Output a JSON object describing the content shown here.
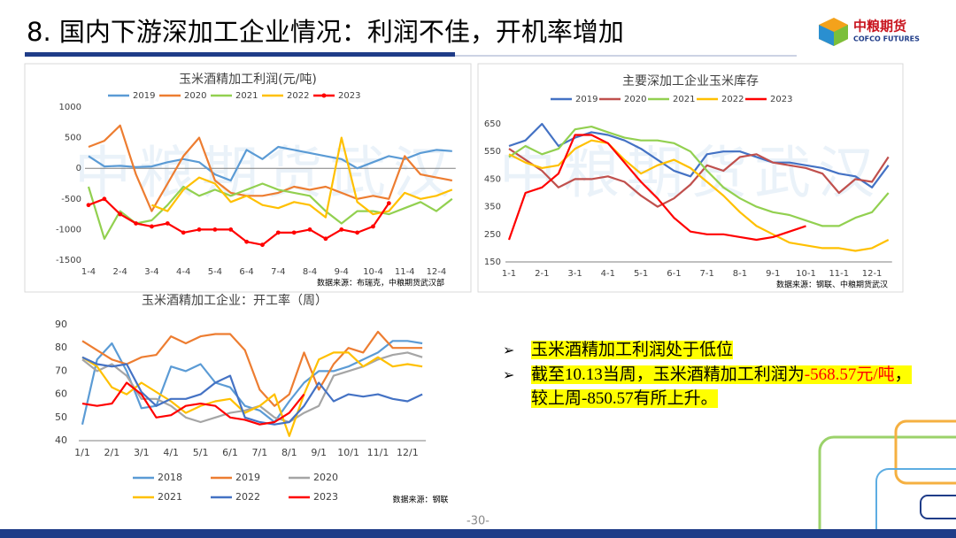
{
  "slide": {
    "title": "8. 国内下游深加工企业情况：利润不佳，开机率增加",
    "logo": {
      "name": "中粮期货",
      "english": "COFCO FUTURES"
    },
    "watermark": "中粮期货武汉",
    "bullets": [
      [
        "玉米酒精加工利润处于低位"
      ],
      [
        "截至10.13当周，玉米酒精加工利润为",
        "-568.57元/吨",
        "，较上周-850.57有所上升。"
      ]
    ],
    "page_number": "-30-"
  },
  "chart_data": [
    {
      "type": "line",
      "title": "玉米酒精加工利润(元/吨)",
      "source": "数据来源：布瑞克，中粮期货武汉部",
      "legend": "top",
      "categories": [
        "1-4",
        null,
        "2-4",
        null,
        "3-4",
        null,
        "4-4",
        null,
        "5-4",
        null,
        "6-4",
        null,
        "7-4",
        null,
        "8-4",
        null,
        "9-4",
        null,
        "10-4",
        null,
        "11-4",
        null,
        "12-4",
        null
      ],
      "ylim": [
        -1500,
        1000
      ],
      "yticks": [
        -1500,
        -1000,
        -500,
        0,
        500,
        1000
      ],
      "series": [
        {
          "name": "2019",
          "color": "#5b9bd5",
          "values": [
            200,
            30,
            40,
            20,
            30,
            100,
            150,
            100,
            -100,
            -200,
            300,
            150,
            350,
            300,
            250,
            200,
            150,
            0,
            100,
            200,
            150,
            250,
            300,
            280
          ]
        },
        {
          "name": "2020",
          "color": "#ed7d31",
          "values": [
            350,
            450,
            700,
            -100,
            -700,
            -250,
            200,
            500,
            -200,
            -400,
            -450,
            -450,
            -400,
            -300,
            -350,
            -300,
            -400,
            -500,
            -450,
            -500,
            200,
            -100,
            -150,
            -200
          ]
        },
        {
          "name": "2021",
          "color": "#92d050",
          "values": [
            -300,
            -1150,
            -700,
            -900,
            -850,
            -600,
            -300,
            -450,
            -350,
            -450,
            -350,
            -250,
            -350,
            -400,
            -450,
            -700,
            -900,
            -700,
            -700,
            -750,
            -650,
            -550,
            -700,
            -500
          ]
        },
        {
          "name": "2022",
          "color": "#ffc000",
          "values": [
            null,
            null,
            null,
            null,
            -600,
            -700,
            -350,
            -150,
            -250,
            -550,
            -450,
            -600,
            -650,
            -550,
            -600,
            -800,
            500,
            -550,
            -750,
            -700,
            -400,
            -500,
            -450,
            -350
          ]
        },
        {
          "name": "2023",
          "color": "#ff0000",
          "marker": true,
          "values": [
            -600,
            -500,
            -750,
            -900,
            -950,
            -900,
            -1050,
            -1000,
            -1000,
            -1000,
            -1200,
            -1250,
            -1050,
            -1050,
            -1000,
            -1150,
            -1000,
            -1050,
            -950,
            -570,
            null,
            null,
            null,
            null
          ]
        }
      ]
    },
    {
      "type": "line",
      "title": "主要深加工企业玉米库存",
      "source": "数据来源：钢联、中粮期货武汉",
      "legend": "top",
      "categories": [
        "1-1",
        null,
        "2-1",
        null,
        "3-1",
        null,
        "4-1",
        null,
        "5-1",
        null,
        "6-1",
        null,
        "7-1",
        null,
        "8-1",
        null,
        "9-1",
        null,
        "10-1",
        null,
        "11-1",
        null,
        "12-1",
        null
      ],
      "ylim": [
        150,
        650
      ],
      "yticks": [
        150,
        250,
        350,
        450,
        550,
        650
      ],
      "series": [
        {
          "name": "2019",
          "color": "#4472c4",
          "values": [
            570,
            590,
            650,
            570,
            600,
            620,
            610,
            590,
            560,
            520,
            480,
            460,
            540,
            550,
            550,
            530,
            510,
            510,
            500,
            490,
            470,
            460,
            420,
            500
          ]
        },
        {
          "name": "2020",
          "color": "#c0504d",
          "values": [
            560,
            520,
            480,
            420,
            450,
            450,
            460,
            440,
            390,
            350,
            380,
            430,
            500,
            480,
            530,
            540,
            510,
            500,
            490,
            470,
            400,
            450,
            440,
            530
          ]
        },
        {
          "name": "2021",
          "color": "#92d050",
          "values": [
            530,
            570,
            540,
            560,
            630,
            640,
            620,
            600,
            590,
            590,
            580,
            550,
            480,
            420,
            380,
            350,
            330,
            320,
            300,
            280,
            280,
            310,
            330,
            400
          ]
        },
        {
          "name": "2022",
          "color": "#ffc000",
          "values": [
            540,
            510,
            490,
            500,
            560,
            590,
            580,
            520,
            470,
            500,
            520,
            490,
            440,
            390,
            330,
            280,
            250,
            220,
            210,
            200,
            200,
            190,
            200,
            230
          ]
        },
        {
          "name": "2023",
          "color": "#ff0000",
          "values": [
            230,
            400,
            420,
            470,
            610,
            610,
            580,
            510,
            440,
            380,
            310,
            260,
            250,
            250,
            240,
            230,
            240,
            260,
            280,
            null,
            null,
            null,
            null,
            null
          ]
        }
      ]
    },
    {
      "type": "line",
      "title": "玉米酒精加工企业：开工率（周）",
      "source": "数据来源：钢联",
      "legend": "bottom",
      "categories": [
        "1/1",
        null,
        "2/1",
        null,
        "3/1",
        null,
        "4/1",
        null,
        "5/1",
        null,
        "6/1",
        null,
        "7/1",
        null,
        "8/1",
        null,
        "9/1",
        null,
        "10/1",
        null,
        "11/1",
        null,
        "12/1",
        null
      ],
      "ylim": [
        40,
        90
      ],
      "yticks": [
        40,
        50,
        60,
        70,
        80,
        90
      ],
      "series": [
        {
          "name": "2018",
          "color": "#5b9bd5",
          "values": [
            47,
            75,
            82,
            70,
            54,
            55,
            72,
            70,
            73,
            65,
            63,
            55,
            53,
            48,
            57,
            65,
            70,
            70,
            72,
            75,
            78,
            83,
            83,
            82
          ]
        },
        {
          "name": "2019",
          "color": "#ed7d31",
          "values": [
            83,
            79,
            75,
            73,
            76,
            77,
            85,
            82,
            85,
            86,
            86,
            79,
            62,
            55,
            60,
            78,
            62,
            73,
            80,
            78,
            87,
            80,
            80,
            80
          ]
        },
        {
          "name": "2020",
          "color": "#a5a5a5",
          "values": [
            75,
            70,
            73,
            68,
            58,
            58,
            55,
            50,
            48,
            50,
            52,
            53,
            55,
            50,
            48,
            52,
            55,
            68,
            70,
            72,
            75,
            77,
            78,
            76
          ]
        },
        {
          "name": "2021",
          "color": "#ffc000",
          "values": [
            76,
            72,
            63,
            60,
            65,
            61,
            57,
            52,
            55,
            57,
            58,
            52,
            55,
            60,
            42,
            60,
            75,
            78,
            78,
            72,
            76,
            72,
            73,
            72
          ]
        },
        {
          "name": "2022",
          "color": "#4472c4",
          "values": [
            76,
            73,
            72,
            73,
            61,
            55,
            58,
            58,
            60,
            65,
            68,
            50,
            48,
            47,
            48,
            55,
            65,
            57,
            60,
            59,
            60,
            58,
            57,
            60
          ]
        },
        {
          "name": "2023",
          "color": "#ff0000",
          "values": [
            56,
            55,
            56,
            65,
            60,
            50,
            51,
            55,
            56,
            55,
            50,
            49,
            47,
            48,
            52,
            60,
            null,
            null,
            null,
            null,
            null,
            null,
            null,
            null
          ]
        }
      ]
    }
  ]
}
